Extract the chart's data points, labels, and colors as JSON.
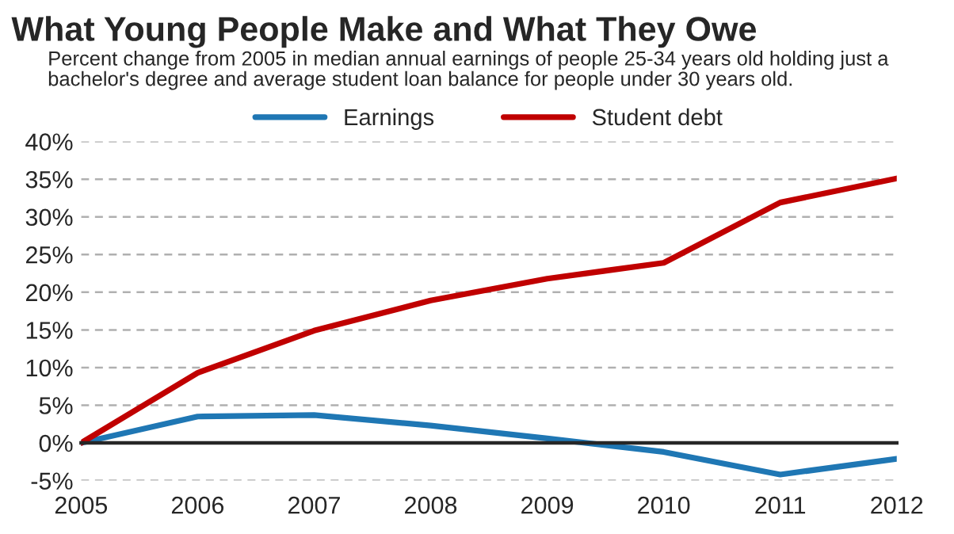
{
  "chart_data": {
    "type": "line",
    "title": "What Young People Make and What They Owe",
    "subtitle": "Percent change from 2005 in median annual earnings of people 25-34 years old holding just a bachelor's degree and average student loan balance for people under 30 years old.",
    "x": [
      "2005",
      "2006",
      "2007",
      "2008",
      "2009",
      "2010",
      "2011",
      "2012"
    ],
    "series": [
      {
        "name": "Earnings",
        "color": "#1f77b4",
        "values": [
          0,
          3.5,
          3.7,
          2.3,
          0.6,
          -1.2,
          -4.2,
          -2.1
        ]
      },
      {
        "name": "Student debt",
        "color": "#c00000",
        "values": [
          0,
          9.3,
          14.9,
          18.9,
          21.8,
          23.9,
          31.9,
          35.1
        ]
      }
    ],
    "xlim": [
      "2005",
      "2012"
    ],
    "xticks": [
      "2005",
      "2006",
      "2007",
      "2008",
      "2009",
      "2010",
      "2011",
      "2012"
    ],
    "ylim": [
      -5,
      40
    ],
    "yticks": [
      {
        "value": -5,
        "label": "-5%"
      },
      {
        "value": 0,
        "label": "0%"
      },
      {
        "value": 5,
        "label": "5%"
      },
      {
        "value": 10,
        "label": "10%"
      },
      {
        "value": 15,
        "label": "15%"
      },
      {
        "value": 20,
        "label": "20%"
      },
      {
        "value": 25,
        "label": "25%"
      },
      {
        "value": 30,
        "label": "30%"
      },
      {
        "value": 35,
        "label": "35%"
      },
      {
        "value": 40,
        "label": "40%"
      }
    ],
    "grid": "y",
    "legend": "top",
    "marker": "none",
    "line_style": "solid"
  }
}
